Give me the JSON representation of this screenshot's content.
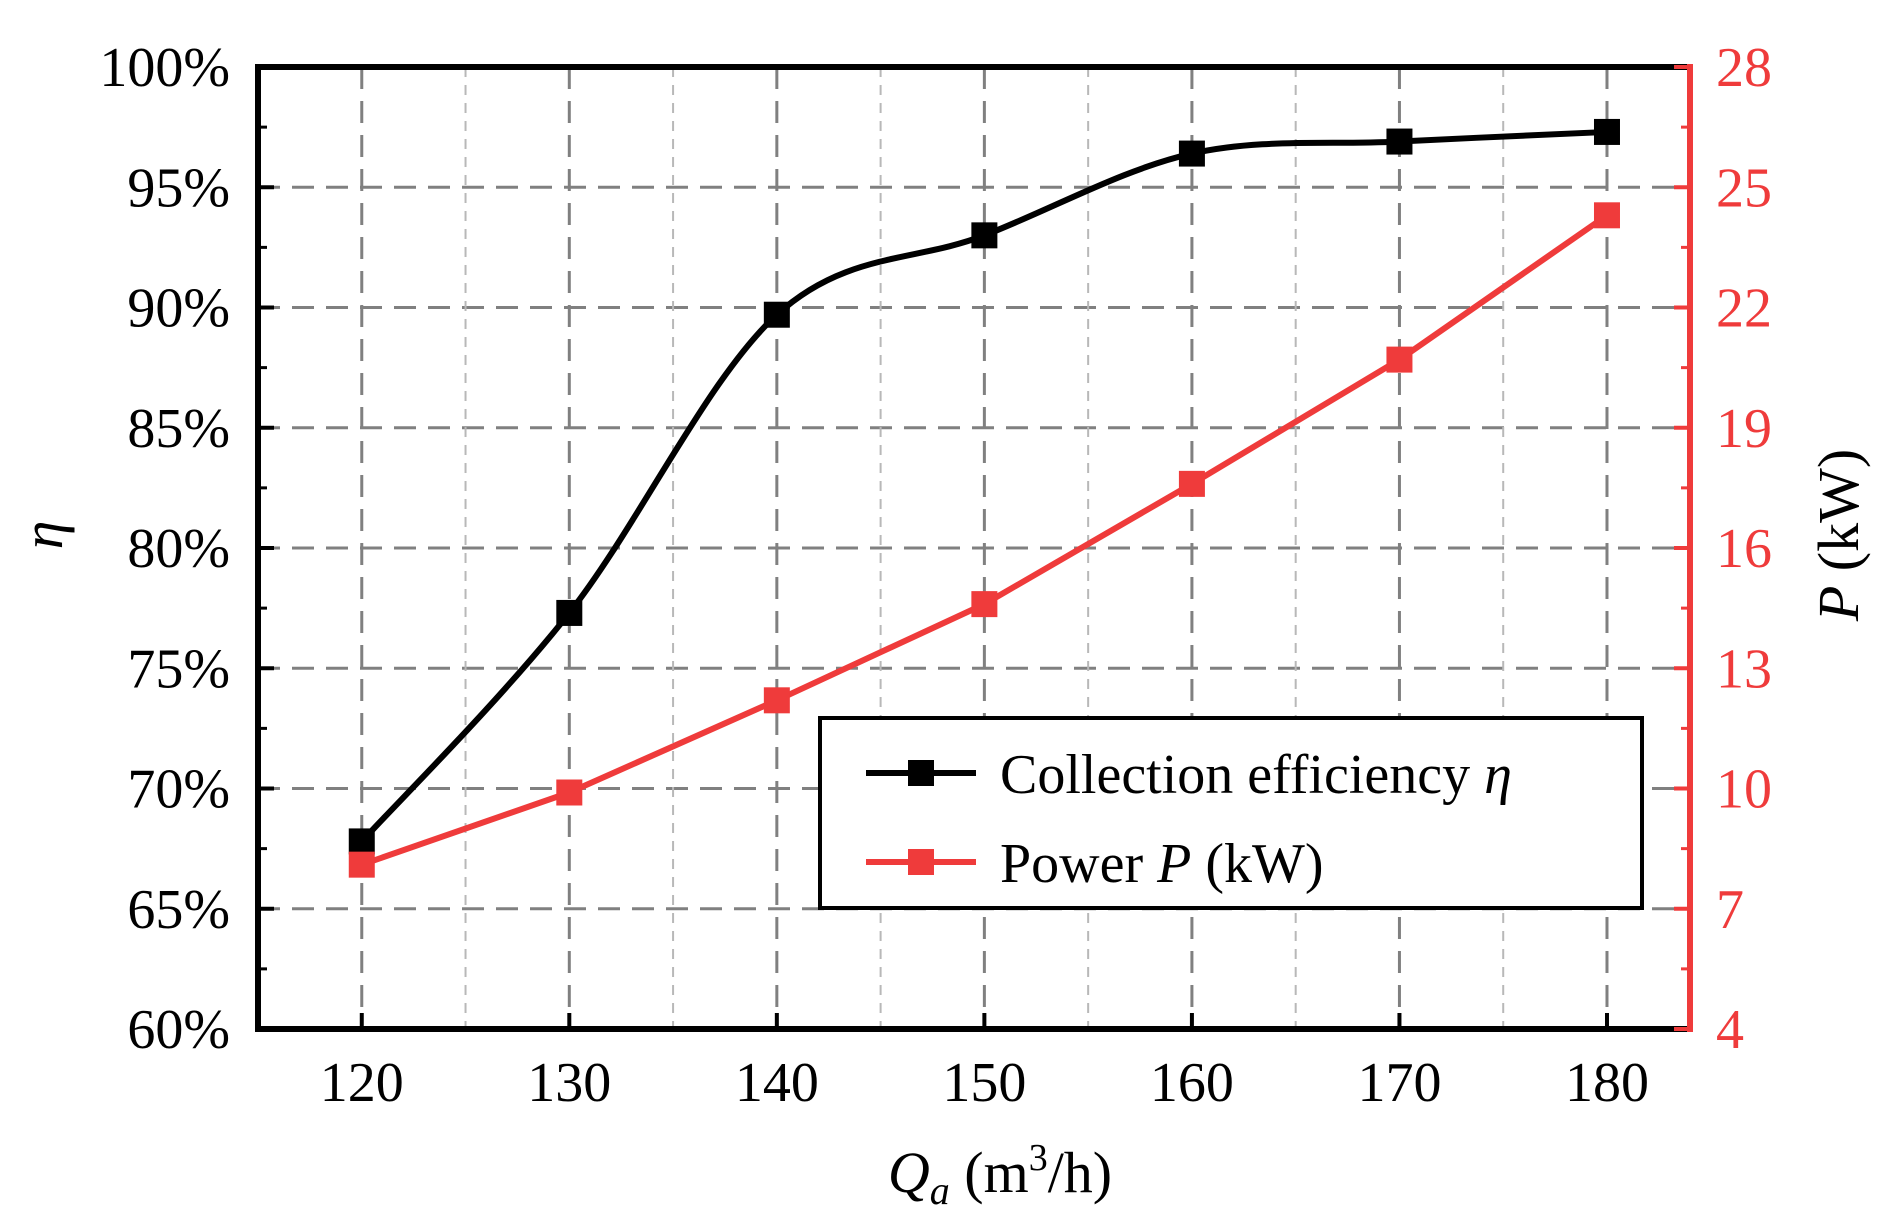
{
  "chart_data": {
    "type": "line",
    "title": "",
    "x": [
      120,
      130,
      140,
      150,
      160,
      170,
      180
    ],
    "xlim": [
      115,
      184
    ],
    "xticks": [
      "120",
      "130",
      "140",
      "150",
      "160",
      "170",
      "180"
    ],
    "xlabel": {
      "symbol": "Q",
      "subscript": "a",
      "unit_prefix": " (m",
      "superscript": "3",
      "unit_suffix": "/h)"
    },
    "ylim_left": [
      60,
      100
    ],
    "yticks_left": [
      "60%",
      "65%",
      "70%",
      "75%",
      "80%",
      "85%",
      "90%",
      "95%",
      "100%"
    ],
    "ylabel_left": "η",
    "ylim_right": [
      4,
      28
    ],
    "yticks_right": [
      "4",
      "7",
      "10",
      "13",
      "16",
      "19",
      "22",
      "25",
      "28"
    ],
    "ylabel_right": {
      "symbol": "P",
      "unit": " (kW)"
    },
    "grid": true,
    "series": [
      {
        "name": "Collection efficiency",
        "name_symbol": "η",
        "axis": "left",
        "color": "#000000",
        "marker": "square",
        "smooth": true,
        "values": [
          67.8,
          77.3,
          89.7,
          93.0,
          96.4,
          96.9,
          97.3
        ]
      },
      {
        "name": "Power",
        "name_symbol": "P",
        "name_unit": " (kW)",
        "axis": "right",
        "color": "#ef3b3b",
        "marker": "square",
        "smooth": false,
        "values": [
          8.1,
          9.9,
          12.2,
          14.6,
          17.6,
          20.7,
          24.3
        ]
      }
    ],
    "legend_position": "lower-right"
  },
  "colors": {
    "axis_left": "#000000",
    "axis_right": "#ef3b3b",
    "grid": "#808080"
  }
}
